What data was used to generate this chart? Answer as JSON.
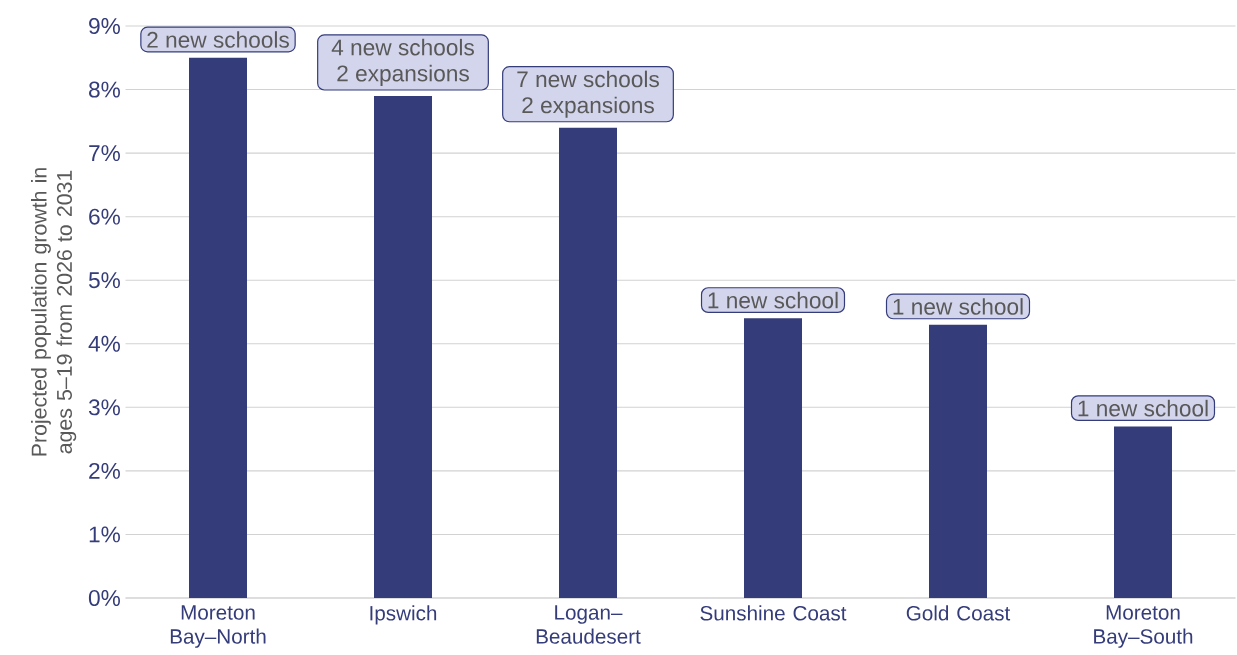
{
  "chart_data": {
    "type": "bar",
    "ylabel": "Projected population growth in ages 5–19 from 2026 to 2031",
    "categories": [
      "Moreton Bay–North",
      "Ipswich",
      "Logan–Beaudesert",
      "Sunshine Coast",
      "Gold Coast",
      "Moreton Bay–South"
    ],
    "values": [
      8.5,
      7.9,
      7.4,
      4.4,
      4.3,
      2.7
    ],
    "color": "#353c7a",
    "ylim": [
      0,
      9
    ],
    "yticks": [
      {
        "value": 0,
        "label": "0%"
      },
      {
        "value": 1,
        "label": "1%"
      },
      {
        "value": 2,
        "label": "2%"
      },
      {
        "value": 3,
        "label": "3%"
      },
      {
        "value": 4,
        "label": "4%"
      },
      {
        "value": 5,
        "label": "5%"
      },
      {
        "value": 6,
        "label": "6%"
      },
      {
        "value": 7,
        "label": "7%"
      },
      {
        "value": 8,
        "label": "8%"
      },
      {
        "value": 9,
        "label": "9%"
      }
    ],
    "grid": "y",
    "annotations": [
      {
        "text": "2 new schools",
        "x": "Moreton Bay–North",
        "y": 8.5
      },
      {
        "text": "4 new schools 2 expansions",
        "x": "Ipswich",
        "y": 7.9
      },
      {
        "text": "7 new schools 2 expansions",
        "x": "Logan–Beaudesert",
        "y": 7.4
      },
      {
        "text": "1 new school",
        "x": "Sunshine Coast",
        "y": 4.4
      },
      {
        "text": "1 new school",
        "x": "Gold Coast",
        "y": 4.3
      },
      {
        "text": "1 new school",
        "x": "Moreton Bay–South",
        "y": 2.7
      }
    ]
  }
}
